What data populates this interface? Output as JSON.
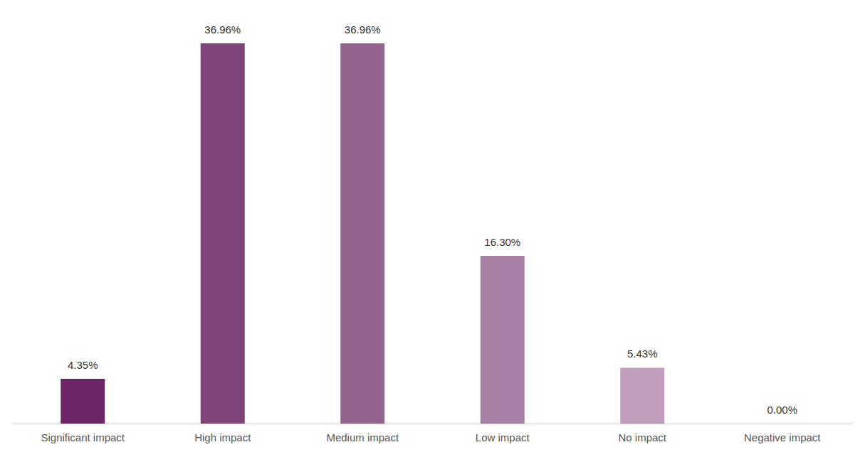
{
  "chart_data": {
    "type": "bar",
    "categories": [
      "Significant impact",
      "High impact",
      "Medium impact",
      "Low impact",
      "No impact",
      "Negative impact"
    ],
    "values": [
      4.35,
      36.96,
      36.96,
      16.3,
      5.43,
      0.0
    ],
    "value_labels": [
      "4.35%",
      "36.96%",
      "36.96%",
      "16.30%",
      "5.43%",
      "0.00%"
    ],
    "colors": [
      "#6c2567",
      "#7f4478",
      "#94648e",
      "#a980a5",
      "#bf9dbb",
      "#d4bcd1"
    ],
    "data_labels": true,
    "grid": false,
    "tick_labels": "x"
  }
}
